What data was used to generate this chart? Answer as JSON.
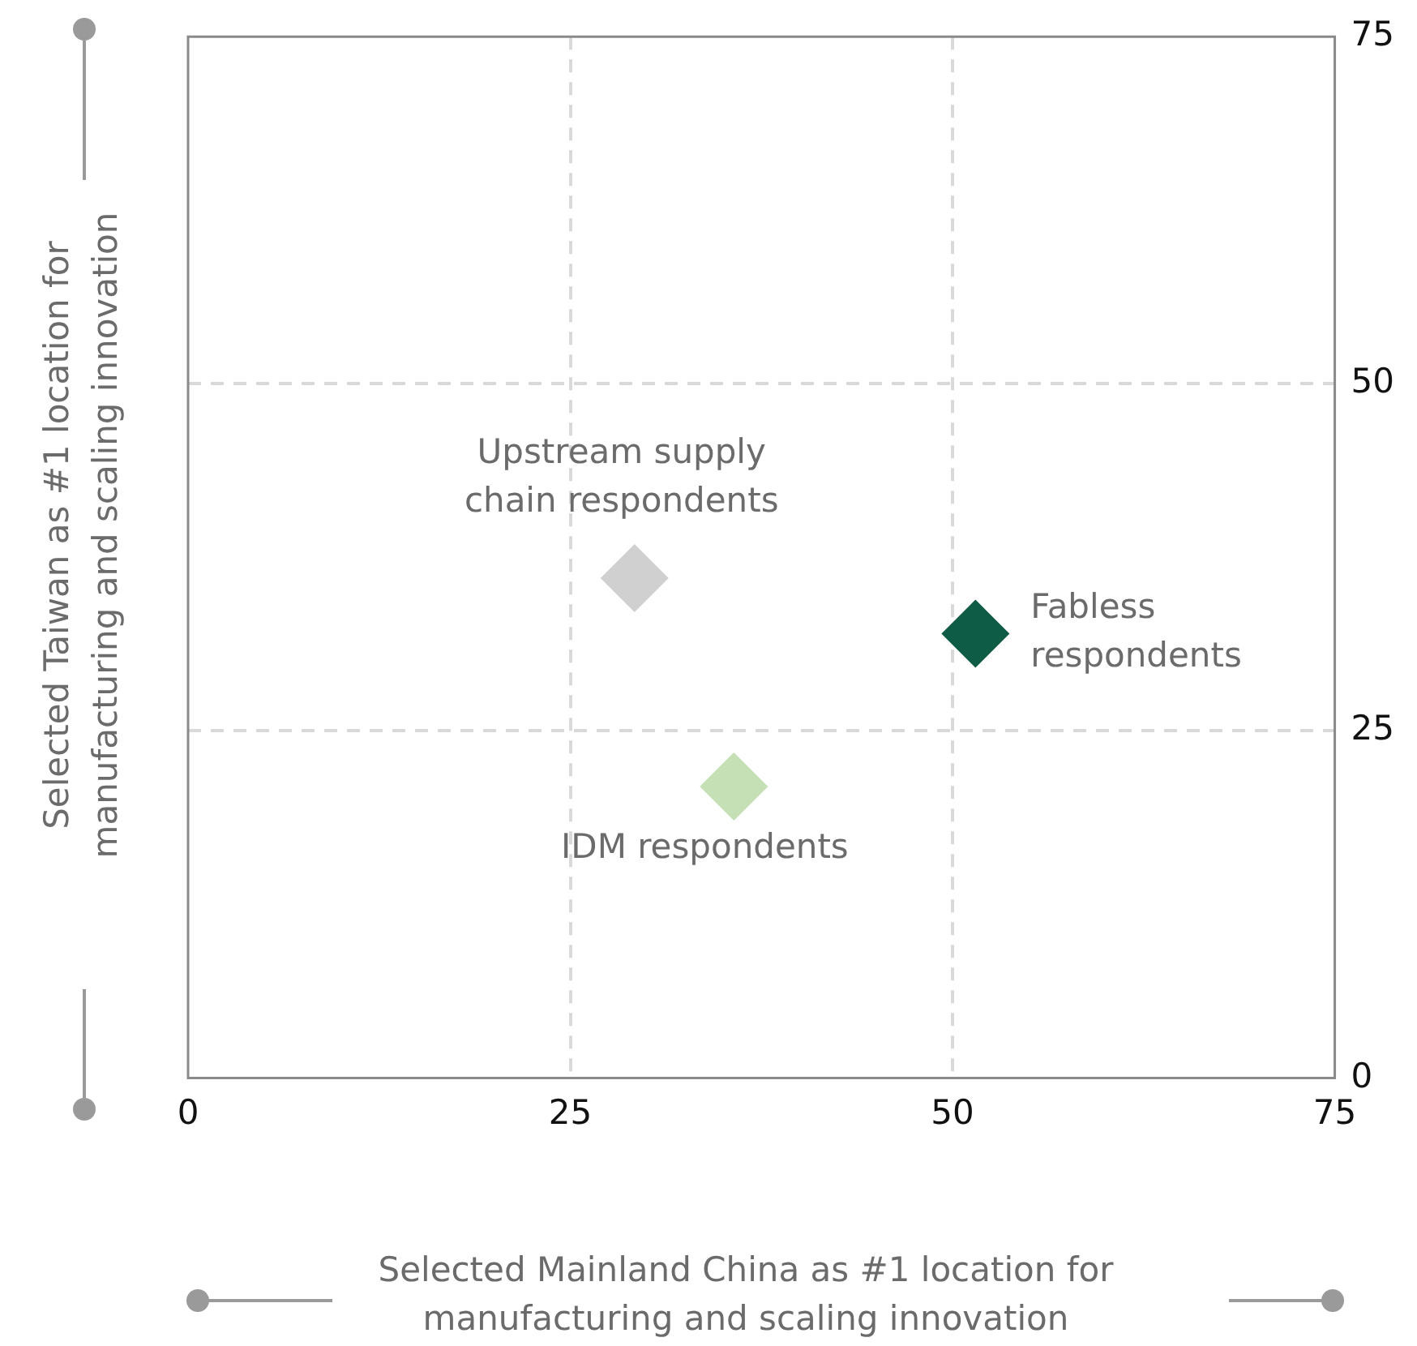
{
  "chart_data": {
    "type": "scatter",
    "xlabel": "Selected Mainland China as #1 location for\nmanufacturing and scaling innovation",
    "ylabel": "Selected Taiwan as #1 location for\nmanufacturing and scaling innovation",
    "xlim": [
      0,
      75
    ],
    "ylim": [
      0,
      75
    ],
    "xticks": [
      0,
      25,
      50,
      75
    ],
    "yticks": [
      0,
      25,
      50,
      75
    ],
    "grid": true,
    "marker": "diamond",
    "series": [
      {
        "name": "Upstream supply\nchain respondents",
        "color": "#d0d0d0",
        "x": [
          29.2
        ],
        "values": [
          36
        ]
      },
      {
        "name": "Fabless\nrespondents",
        "color": "#0e5c45",
        "x": [
          51.5
        ],
        "values": [
          32
        ]
      },
      {
        "name": "IDM respondents",
        "color": "#c5e0b4",
        "x": [
          35.7
        ],
        "values": [
          21
        ]
      }
    ]
  }
}
